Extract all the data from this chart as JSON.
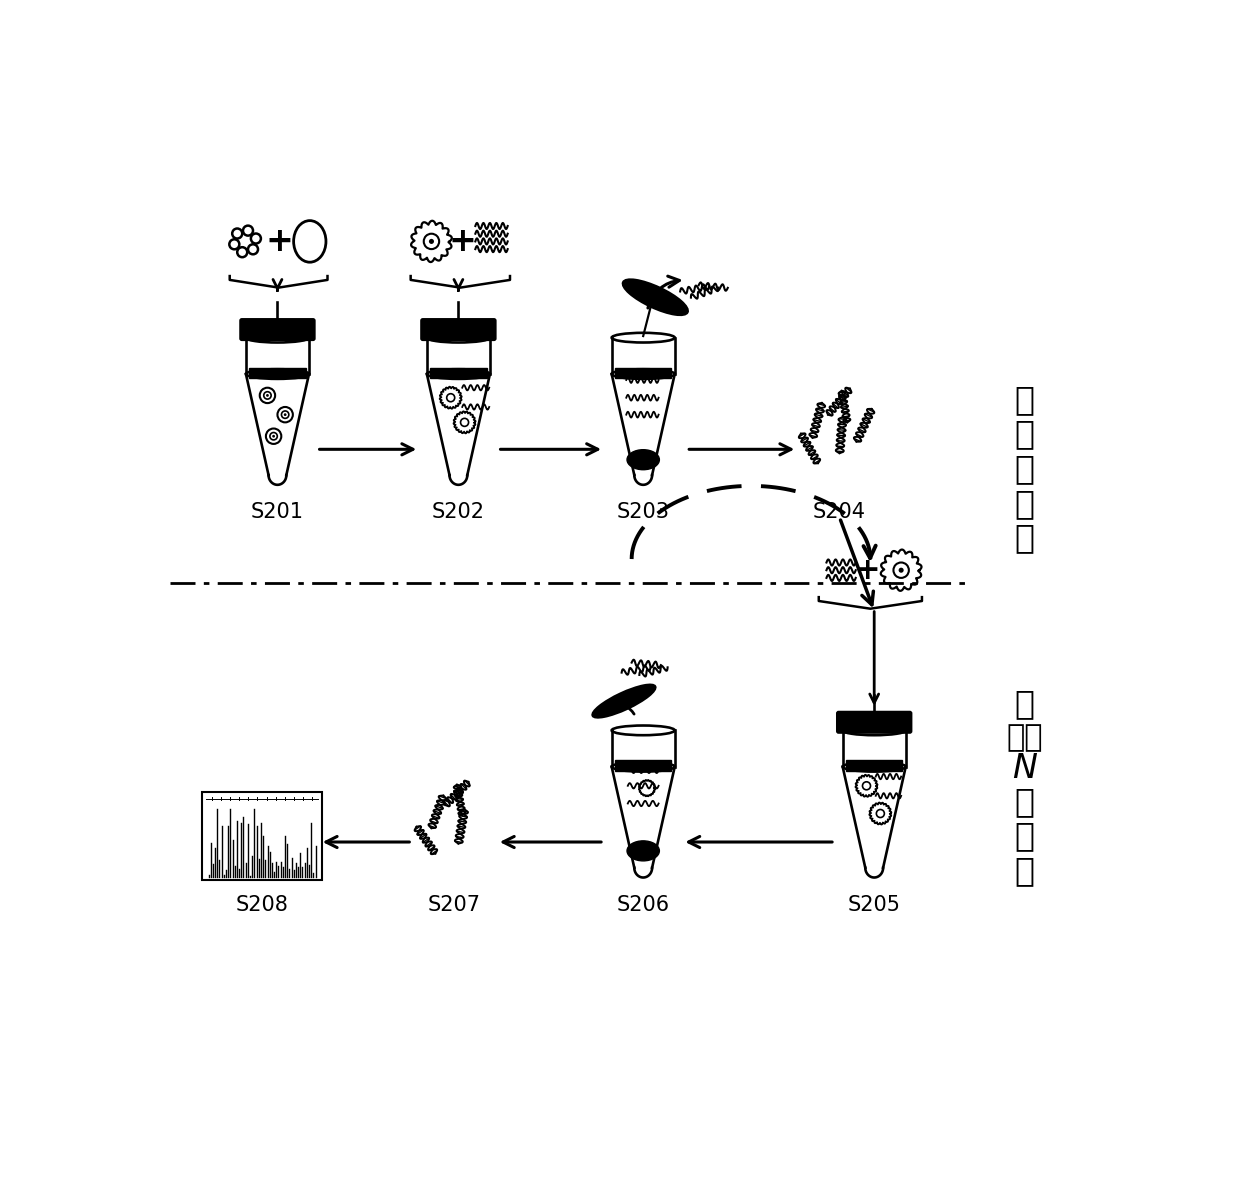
{
  "background_color": "#ffffff",
  "label_s201": "S201",
  "label_s202": "S202",
  "label_s203": "S203",
  "label_s204": "S204",
  "label_s205": "S205",
  "label_s206": "S206",
  "label_s207": "S207",
  "label_s208": "S208",
  "round1_label": "第一轮筛选",
  "round2_label": "第二至N轮筛选",
  "font_size_label": 15,
  "font_size_chinese": 24
}
